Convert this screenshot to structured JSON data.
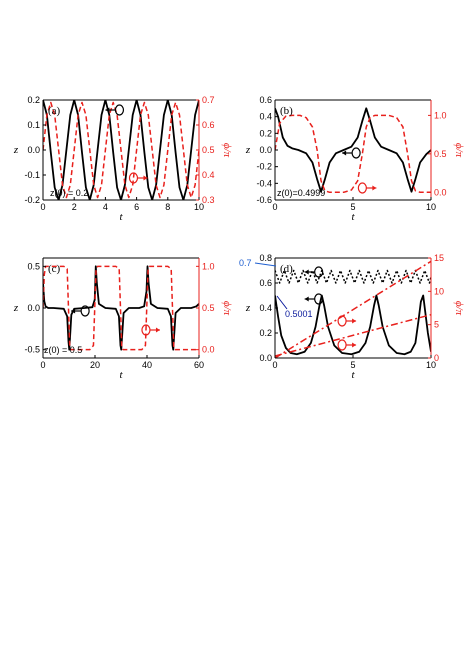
{
  "colors": {
    "z": "#000000",
    "phi": "#e8201c",
    "annotation_blue": "#0a1a9c",
    "annotation_blue_light": "#1f5fd0"
  },
  "chart_data": [
    {
      "type": "line",
      "panel_label": "(a)",
      "xlabel": "t",
      "ylabel": "z",
      "y2label": "ϕ/π",
      "xlim": [
        0,
        10
      ],
      "ylim": [
        -0.2,
        0.2
      ],
      "y2lim": [
        0.3,
        0.7
      ],
      "xticks": [
        "0",
        "2",
        "4",
        "6",
        "8",
        "10"
      ],
      "yticks": [
        "-0.2",
        "-0.1",
        "0.0",
        "0.1",
        "0.2"
      ],
      "y2ticks": [
        "0.3",
        "0.4",
        "0.5",
        "0.6",
        "0.7"
      ],
      "annotation": "z(0) = 0.2",
      "series": [
        {
          "axis": "left",
          "style": "solid",
          "t": [
            0,
            0.25,
            0.5,
            0.75,
            1,
            1.25,
            1.5,
            1.75,
            2,
            2.25,
            2.5,
            2.75,
            3,
            3.25,
            3.5,
            3.75,
            4,
            4.25,
            4.5,
            4.75,
            5,
            5.25,
            5.5,
            5.75,
            6,
            6.25,
            6.5,
            6.75,
            7,
            7.25,
            7.5,
            7.75,
            8,
            8.25,
            8.5,
            8.75,
            9,
            9.25,
            9.5,
            9.75,
            10
          ],
          "values": [
            0.2,
            0.14,
            -0.01,
            -0.15,
            -0.2,
            -0.14,
            0.0,
            0.14,
            0.2,
            0.14,
            -0.01,
            -0.15,
            -0.2,
            -0.14,
            0.0,
            0.14,
            0.2,
            0.14,
            -0.01,
            -0.15,
            -0.2,
            -0.14,
            0.0,
            0.14,
            0.2,
            0.14,
            -0.01,
            -0.15,
            -0.2,
            -0.14,
            0.0,
            0.14,
            0.2,
            0.14,
            -0.01,
            -0.15,
            -0.2,
            -0.14,
            0.0,
            0.14,
            0.2
          ]
        },
        {
          "axis": "right",
          "style": "dashed",
          "t": [
            0,
            0.25,
            0.5,
            0.75,
            1,
            1.25,
            1.5,
            1.75,
            2,
            2.25,
            2.5,
            2.75,
            3,
            3.25,
            3.5,
            3.75,
            4,
            4.25,
            4.5,
            4.75,
            5,
            5.25,
            5.5,
            5.75,
            6,
            6.25,
            6.5,
            6.75,
            7,
            7.25,
            7.5,
            7.75,
            8,
            8.25,
            8.5,
            8.75,
            9,
            9.25,
            9.5,
            9.75,
            10
          ],
          "values": [
            0.5,
            0.64,
            0.69,
            0.64,
            0.5,
            0.36,
            0.31,
            0.36,
            0.5,
            0.64,
            0.69,
            0.64,
            0.5,
            0.36,
            0.31,
            0.36,
            0.5,
            0.64,
            0.69,
            0.64,
            0.5,
            0.36,
            0.31,
            0.36,
            0.5,
            0.64,
            0.69,
            0.64,
            0.5,
            0.36,
            0.31,
            0.36,
            0.5,
            0.64,
            0.69,
            0.64,
            0.5,
            0.36,
            0.31,
            0.36,
            0.5
          ]
        }
      ]
    },
    {
      "type": "line",
      "panel_label": "(b)",
      "xlabel": "t",
      "ylabel": "z",
      "y2label": "ϕ/π",
      "xlim": [
        0,
        10
      ],
      "ylim": [
        -0.6,
        0.6
      ],
      "y2lim": [
        -0.1,
        1.2
      ],
      "xticks": [
        "0",
        "5",
        "10"
      ],
      "yticks": [
        "-0.6",
        "-0.4",
        "-0.2",
        "0.0",
        "0.2",
        "0.4",
        "0.6"
      ],
      "y2ticks": [
        "0.0",
        "0.5",
        "1.0"
      ],
      "annotation": "z(0)=0.4999",
      "series": [
        {
          "axis": "left",
          "style": "solid",
          "t": [
            0,
            0.2,
            0.5,
            0.8,
            1.1,
            1.5,
            2.0,
            2.4,
            2.7,
            2.95,
            3.2,
            3.5,
            3.9,
            4.4,
            4.9,
            5.3,
            5.6,
            5.85,
            6.1,
            6.4,
            6.8,
            7.3,
            7.8,
            8.2,
            8.5,
            8.75,
            9.0,
            9.3,
            9.7,
            10
          ],
          "values": [
            0.5,
            0.4,
            0.15,
            0.05,
            0.02,
            0.0,
            -0.04,
            -0.15,
            -0.35,
            -0.5,
            -0.35,
            -0.15,
            -0.04,
            0.0,
            0.04,
            0.15,
            0.35,
            0.5,
            0.35,
            0.15,
            0.04,
            0.0,
            -0.04,
            -0.15,
            -0.35,
            -0.5,
            -0.35,
            -0.15,
            -0.05,
            0.0
          ]
        },
        {
          "axis": "right",
          "style": "dashed",
          "t": [
            0,
            0.3,
            0.7,
            1.1,
            1.6,
            2.0,
            2.4,
            2.7,
            2.95,
            3.2,
            3.5,
            3.9,
            4.4,
            4.9,
            5.3,
            5.6,
            5.85,
            6.1,
            6.4,
            6.8,
            7.3,
            7.8,
            8.2,
            8.5,
            8.75,
            9.0,
            9.3,
            9.7,
            10
          ],
          "values": [
            0.55,
            0.9,
            0.99,
            1.0,
            1.0,
            0.97,
            0.85,
            0.55,
            0.15,
            0.02,
            0.0,
            0.0,
            0.0,
            0.03,
            0.15,
            0.5,
            0.85,
            0.97,
            1.0,
            1.0,
            1.0,
            0.97,
            0.85,
            0.5,
            0.15,
            0.02,
            0.0,
            0.0,
            0.0
          ]
        }
      ]
    },
    {
      "type": "line",
      "panel_label": "(c)",
      "xlabel": "t",
      "ylabel": "z",
      "y2label": "ϕ/π",
      "xlim": [
        0,
        60
      ],
      "ylim": [
        -0.6,
        0.6
      ],
      "y2lim": [
        -0.1,
        1.1
      ],
      "xticks": [
        "0",
        "20",
        "40",
        "60"
      ],
      "yticks": [
        "-0.5",
        "0.0",
        "0.5"
      ],
      "y2ticks": [
        "0.0",
        "0.5",
        "1.0"
      ],
      "annotation": "z(0) = 0.5",
      "series": [
        {
          "axis": "left",
          "style": "solid",
          "t": [
            0,
            0.5,
            1,
            2,
            4,
            8,
            9.3,
            9.8,
            10.1,
            10.4,
            10.9,
            12,
            16,
            19,
            19.9,
            20.3,
            20.7,
            21.5,
            24,
            28,
            29.2,
            29.8,
            30.1,
            30.4,
            31,
            33,
            37,
            38.9,
            39.8,
            40.2,
            40.6,
            41.5,
            44,
            48,
            49.2,
            49.8,
            50.1,
            50.4,
            51,
            53,
            57,
            59,
            60
          ],
          "values": [
            0.3,
            0.08,
            0.02,
            0.0,
            0.0,
            -0.01,
            -0.1,
            -0.4,
            -0.5,
            -0.35,
            -0.08,
            -0.01,
            0.0,
            0.01,
            0.1,
            0.5,
            0.3,
            0.05,
            0.0,
            -0.01,
            -0.1,
            -0.45,
            -0.5,
            -0.35,
            -0.06,
            0.0,
            0.0,
            0.02,
            0.2,
            0.5,
            0.3,
            0.05,
            0.0,
            -0.01,
            -0.1,
            -0.45,
            -0.5,
            -0.35,
            -0.06,
            0.0,
            0.0,
            0.02,
            0.05
          ]
        },
        {
          "axis": "right",
          "style": "dashed",
          "t": [
            0,
            0.5,
            1,
            8,
            9.3,
            9.8,
            10.3,
            10.8,
            18,
            19.4,
            19.9,
            20.4,
            21,
            28,
            29.3,
            29.8,
            30.3,
            30.8,
            38,
            39.4,
            39.9,
            40.4,
            41,
            48,
            49.3,
            49.8,
            50.3,
            50.8,
            58,
            60
          ],
          "values": [
            0.5,
            0.9,
            1.0,
            1.0,
            0.97,
            0.5,
            0.03,
            0.0,
            0.0,
            0.05,
            0.5,
            0.95,
            1.0,
            1.0,
            0.97,
            0.5,
            0.03,
            0.0,
            0.0,
            0.05,
            0.5,
            0.95,
            1.0,
            1.0,
            0.97,
            0.5,
            0.03,
            0.0,
            0.0,
            0.0
          ]
        }
      ]
    },
    {
      "type": "line",
      "panel_label": "(d)",
      "xlabel": "t",
      "ylabel": "z",
      "y2label": "ϕ/π",
      "xlim": [
        0,
        10
      ],
      "ylim": [
        0.0,
        0.8
      ],
      "y2lim": [
        0,
        15
      ],
      "xticks": [
        "0",
        "5",
        "10"
      ],
      "yticks": [
        "0.0",
        "0.2",
        "0.4",
        "0.6",
        "0.8"
      ],
      "y2ticks": [
        "0",
        "5",
        "10",
        "15"
      ],
      "annotations": [
        "0.7",
        "0.5001"
      ],
      "series": [
        {
          "axis": "left",
          "style": "dotted",
          "t": [
            0,
            0.3,
            0.6,
            0.9,
            1.2,
            1.5,
            1.8,
            2.1,
            2.4,
            2.7,
            3.0,
            3.3,
            3.6,
            3.9,
            4.2,
            4.5,
            4.8,
            5.1,
            5.4,
            5.7,
            6.0,
            6.3,
            6.6,
            6.9,
            7.2,
            7.5,
            7.8,
            8.1,
            8.4,
            8.7,
            9.0,
            9.3,
            9.6,
            9.9,
            10
          ],
          "values": [
            0.7,
            0.6,
            0.7,
            0.6,
            0.7,
            0.6,
            0.7,
            0.6,
            0.7,
            0.6,
            0.7,
            0.6,
            0.7,
            0.6,
            0.7,
            0.6,
            0.7,
            0.6,
            0.7,
            0.6,
            0.7,
            0.6,
            0.7,
            0.6,
            0.7,
            0.6,
            0.7,
            0.6,
            0.7,
            0.6,
            0.7,
            0.6,
            0.7,
            0.6,
            0.65
          ]
        },
        {
          "axis": "left",
          "style": "solid",
          "t": [
            0,
            0.2,
            0.4,
            0.7,
            1.0,
            1.4,
            1.9,
            2.3,
            2.6,
            2.85,
            3.0,
            3.15,
            3.4,
            3.8,
            4.3,
            4.9,
            5.4,
            5.8,
            6.1,
            6.35,
            6.5,
            6.65,
            6.9,
            7.3,
            7.8,
            8.3,
            8.7,
            9.0,
            9.2,
            9.35,
            9.5,
            9.8,
            10
          ],
          "values": [
            0.5,
            0.33,
            0.18,
            0.08,
            0.04,
            0.03,
            0.05,
            0.12,
            0.25,
            0.42,
            0.5,
            0.42,
            0.25,
            0.1,
            0.04,
            0.03,
            0.05,
            0.12,
            0.25,
            0.42,
            0.5,
            0.42,
            0.25,
            0.1,
            0.04,
            0.03,
            0.05,
            0.12,
            0.3,
            0.45,
            0.5,
            0.2,
            0.05
          ]
        },
        {
          "axis": "right",
          "style": "dashdot",
          "t": [
            0,
            10
          ],
          "values": [
            0,
            14.5
          ]
        },
        {
          "axis": "right",
          "style": "dashdot",
          "t": [
            0,
            10
          ],
          "values": [
            0.3,
            6.5
          ]
        }
      ]
    }
  ]
}
